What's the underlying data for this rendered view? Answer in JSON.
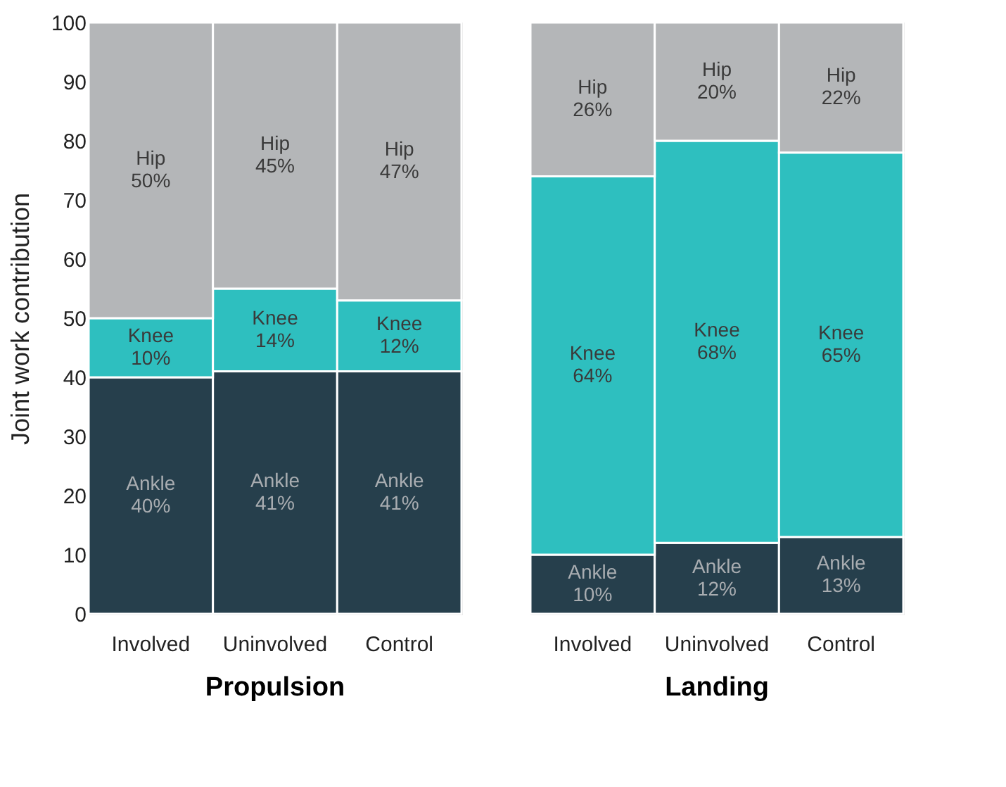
{
  "chart_data": [
    {
      "type": "bar",
      "stacked": true,
      "title": "Propulsion",
      "ylabel": "Joint work contribution",
      "categories": [
        "Involved",
        "Uninvolved",
        "Control"
      ],
      "ylim": [
        0,
        100
      ],
      "yticks": [
        0,
        10,
        20,
        30,
        40,
        50,
        60,
        70,
        80,
        90,
        100
      ],
      "legend": false,
      "series": [
        {
          "name": "Ankle",
          "color": "#263f4c",
          "values": [
            40,
            41,
            41
          ],
          "value_labels": [
            "40%",
            "41%",
            "41%"
          ]
        },
        {
          "name": "Knee",
          "color": "#2ebfbf",
          "values": [
            10,
            14,
            12
          ],
          "value_labels": [
            "10%",
            "14%",
            "12%"
          ]
        },
        {
          "name": "Hip",
          "color": "#b4b6b8",
          "values": [
            50,
            45,
            47
          ],
          "value_labels": [
            "50%",
            "45%",
            "47%"
          ]
        }
      ]
    },
    {
      "type": "bar",
      "stacked": true,
      "title": "Landing",
      "categories": [
        "Involved",
        "Uninvolved",
        "Control"
      ],
      "ylim": [
        0,
        100
      ],
      "yticks": [
        0,
        10,
        20,
        30,
        40,
        50,
        60,
        70,
        80,
        90,
        100
      ],
      "tick_labels": "x",
      "legend": false,
      "series": [
        {
          "name": "Ankle",
          "color": "#263f4c",
          "values": [
            10,
            12,
            13
          ],
          "value_labels": [
            "10%",
            "12%",
            "13%"
          ]
        },
        {
          "name": "Knee",
          "color": "#2ebfbf",
          "values": [
            64,
            68,
            65
          ],
          "value_labels": [
            "64%",
            "68%",
            "65%"
          ]
        },
        {
          "name": "Hip",
          "color": "#b4b6b8",
          "values": [
            26,
            20,
            22
          ],
          "value_labels": [
            "26%",
            "20%",
            "22%"
          ]
        }
      ]
    }
  ]
}
